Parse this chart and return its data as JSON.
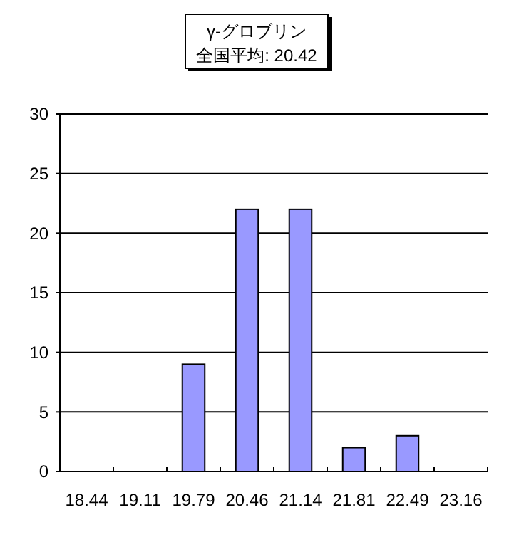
{
  "chart_data": {
    "type": "bar",
    "title": "γ-グロブリン",
    "subtitle": "全国平均: 20.42",
    "categories": [
      "18.44",
      "19.11",
      "19.79",
      "20.46",
      "21.14",
      "21.81",
      "22.49",
      "23.16"
    ],
    "values": [
      0,
      0,
      9,
      22,
      22,
      2,
      3,
      0
    ],
    "color": "#9999ff",
    "ylim": [
      0,
      30
    ],
    "yticks": [
      0,
      5,
      10,
      15,
      20,
      25,
      30
    ],
    "grid": "y"
  }
}
